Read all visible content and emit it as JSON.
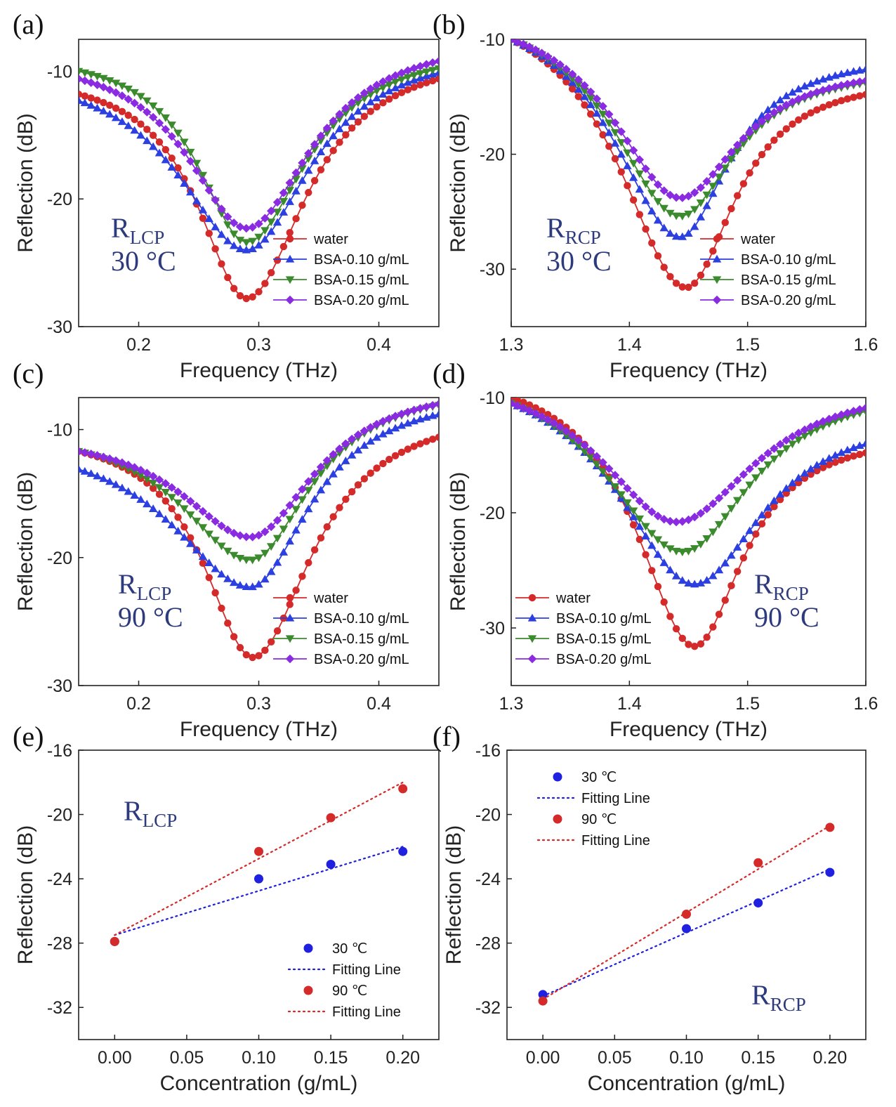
{
  "chart_data": [
    {
      "id": "a",
      "type": "line",
      "panel_label": "(a)",
      "annotation": {
        "main": "R",
        "sub": "LCP",
        "temp": "30 °C"
      },
      "legend_position": "bottom-right",
      "xlabel": "Frequency (THz)",
      "ylabel": "Reflection (dB)",
      "xlim": [
        0.15,
        0.45
      ],
      "ylim": [
        -30,
        -7.5
      ],
      "xticks": [
        0.2,
        0.3,
        0.4
      ],
      "yticks": [
        -30,
        -20,
        -10
      ],
      "xtick_labels": [
        "0.2",
        "0.3",
        "0.4"
      ],
      "ytick_labels": [
        "-30",
        "-20",
        "-10"
      ],
      "series": [
        {
          "name": "water",
          "color": "#d42a2a",
          "marker": "circle",
          "min_x": 0.29,
          "min_y": -27.8,
          "left_y": -11.8,
          "right_y": -10.6,
          "hw_left": 0.05,
          "hw_right": 0.06
        },
        {
          "name": "BSA-0.10 g/mL",
          "color": "#2c3fe0",
          "marker": "triangle-up",
          "min_x": 0.29,
          "min_y": -24.0,
          "left_y": -12.3,
          "right_y": -10.1,
          "hw_left": 0.07,
          "hw_right": 0.065
        },
        {
          "name": "BSA-0.15 g/mL",
          "color": "#3c8a2e",
          "marker": "triangle-down",
          "min_x": 0.29,
          "min_y": -23.4,
          "left_y": -10.0,
          "right_y": -9.8,
          "hw_left": 0.05,
          "hw_right": 0.06
        },
        {
          "name": "BSA-0.20 g/mL",
          "color": "#8a2be2",
          "marker": "diamond",
          "min_x": 0.29,
          "min_y": -22.3,
          "left_y": -10.6,
          "right_y": -9.2,
          "hw_left": 0.06,
          "hw_right": 0.065
        }
      ]
    },
    {
      "id": "b",
      "type": "line",
      "panel_label": "(b)",
      "annotation": {
        "main": "R",
        "sub": "RCP",
        "temp": "30 °C"
      },
      "legend_position": "bottom-right",
      "xlabel": "Frequency (THz)",
      "ylabel": "Reflection (dB)",
      "xlim": [
        1.3,
        1.6
      ],
      "ylim": [
        -35,
        -10
      ],
      "xticks": [
        1.3,
        1.4,
        1.5,
        1.6
      ],
      "yticks": [
        -30,
        -20,
        -10
      ],
      "xtick_labels": [
        "1.3",
        "1.4",
        "1.5",
        "1.6"
      ],
      "ytick_labels": [
        "-30",
        "-20",
        "-10"
      ],
      "series": [
        {
          "name": "water",
          "color": "#d42a2a",
          "marker": "circle",
          "min_x": 1.448,
          "min_y": -31.6,
          "left_y": -10.0,
          "right_y": -14.8,
          "hw_left": 0.07,
          "hw_right": 0.05
        },
        {
          "name": "BSA-0.10 g/mL",
          "color": "#2c3fe0",
          "marker": "triangle-up",
          "min_x": 1.443,
          "min_y": -27.2,
          "left_y": -10.0,
          "right_y": -12.6,
          "hw_left": 0.07,
          "hw_right": 0.05
        },
        {
          "name": "BSA-0.15 g/mL",
          "color": "#3c8a2e",
          "marker": "triangle-down",
          "min_x": 1.443,
          "min_y": -25.4,
          "left_y": -10.0,
          "right_y": -13.8,
          "hw_left": 0.07,
          "hw_right": 0.055
        },
        {
          "name": "BSA-0.20 g/mL",
          "color": "#8a2be2",
          "marker": "diamond",
          "min_x": 1.443,
          "min_y": -23.8,
          "left_y": -10.0,
          "right_y": -13.6,
          "hw_left": 0.07,
          "hw_right": 0.06
        }
      ]
    },
    {
      "id": "c",
      "type": "line",
      "panel_label": "(c)",
      "annotation": {
        "main": "R",
        "sub": "LCP",
        "temp": "90 °C"
      },
      "legend_position": "bottom-right",
      "xlabel": "Frequency (THz)",
      "ylabel": "Reflection (dB)",
      "xlim": [
        0.15,
        0.45
      ],
      "ylim": [
        -30,
        -7.5
      ],
      "xticks": [
        0.2,
        0.3,
        0.4
      ],
      "yticks": [
        -30,
        -20,
        -10
      ],
      "xtick_labels": [
        "0.2",
        "0.3",
        "0.4"
      ],
      "ytick_labels": [
        "-30",
        "-20",
        "-10"
      ],
      "series": [
        {
          "name": "water",
          "color": "#d42a2a",
          "marker": "circle",
          "min_x": 0.295,
          "min_y": -27.8,
          "left_y": -11.7,
          "right_y": -10.6,
          "hw_left": 0.05,
          "hw_right": 0.06
        },
        {
          "name": "BSA-0.10 g/mL",
          "color": "#2c3fe0",
          "marker": "triangle-up",
          "min_x": 0.293,
          "min_y": -22.3,
          "left_y": -13.1,
          "right_y": -8.8,
          "hw_left": 0.08,
          "hw_right": 0.06
        },
        {
          "name": "BSA-0.15 g/mL",
          "color": "#3c8a2e",
          "marker": "triangle-down",
          "min_x": 0.293,
          "min_y": -20.2,
          "left_y": -11.7,
          "right_y": -8.1,
          "hw_left": 0.07,
          "hw_right": 0.06
        },
        {
          "name": "BSA-0.20 g/mL",
          "color": "#8a2be2",
          "marker": "diamond",
          "min_x": 0.293,
          "min_y": -18.4,
          "left_y": -11.7,
          "right_y": -8.0,
          "hw_left": 0.07,
          "hw_right": 0.065
        }
      ]
    },
    {
      "id": "d",
      "type": "line",
      "panel_label": "(d)",
      "annotation": {
        "main": "R",
        "sub": "RCP",
        "temp": "90 °C"
      },
      "legend_position": "bottom-left",
      "xlabel": "Frequency (THz)",
      "ylabel": "Reflection (dB)",
      "xlim": [
        1.3,
        1.6
      ],
      "ylim": [
        -35,
        -10
      ],
      "xticks": [
        1.3,
        1.4,
        1.5,
        1.6
      ],
      "yticks": [
        -30,
        -20,
        -10
      ],
      "xtick_labels": [
        "1.3",
        "1.4",
        "1.5",
        "1.6"
      ],
      "ytick_labels": [
        "-30",
        "-20",
        "-10"
      ],
      "series": [
        {
          "name": "water",
          "color": "#d42a2a",
          "marker": "circle",
          "min_x": 1.455,
          "min_y": -31.6,
          "left_y": -10.0,
          "right_y": -14.8,
          "hw_left": 0.06,
          "hw_right": 0.05
        },
        {
          "name": "BSA-0.10 g/mL",
          "color": "#2c3fe0",
          "marker": "triangle-up",
          "min_x": 1.455,
          "min_y": -26.2,
          "left_y": -10.5,
          "right_y": -14.0,
          "hw_left": 0.08,
          "hw_right": 0.07
        },
        {
          "name": "BSA-0.15 g/mL",
          "color": "#3c8a2e",
          "marker": "triangle-down",
          "min_x": 1.445,
          "min_y": -23.4,
          "left_y": -10.5,
          "right_y": -11.2,
          "hw_left": 0.08,
          "hw_right": 0.07
        },
        {
          "name": "BSA-0.20 g/mL",
          "color": "#8a2be2",
          "marker": "diamond",
          "min_x": 1.44,
          "min_y": -20.8,
          "left_y": -10.5,
          "right_y": -10.9,
          "hw_left": 0.08,
          "hw_right": 0.08
        }
      ]
    },
    {
      "id": "e",
      "type": "scatter",
      "panel_label": "(e)",
      "annotation": {
        "main": "R",
        "sub": "LCP",
        "temp": ""
      },
      "legend_position": "bottom-right",
      "xlabel": "Concentration (g/mL)",
      "ylabel": "Reflection (dB)",
      "xlim": [
        -0.025,
        0.225
      ],
      "ylim": [
        -34,
        -16
      ],
      "xticks": [
        0.0,
        0.05,
        0.1,
        0.15,
        0.2
      ],
      "yticks": [
        -32,
        -28,
        -24,
        -20,
        -16
      ],
      "xtick_labels": [
        "0.00",
        "0.05",
        "0.10",
        "0.15",
        "0.20"
      ],
      "ytick_labels": [
        "-32",
        "-28",
        "-24",
        "-20",
        "-16"
      ],
      "series": [
        {
          "name": "30 ℃",
          "color": "#2020e0",
          "x": [
            0.0,
            0.1,
            0.15,
            0.2
          ],
          "y": [
            -27.9,
            -24.0,
            -23.1,
            -22.3
          ],
          "fit_name": "Fitting Line",
          "fit_x": [
            0.0,
            0.2
          ],
          "fit_y": [
            -27.5,
            -22.0
          ]
        },
        {
          "name": "90 ℃",
          "color": "#d42a2a",
          "x": [
            0.0,
            0.1,
            0.15,
            0.2
          ],
          "y": [
            -27.9,
            -22.3,
            -20.2,
            -18.4
          ],
          "fit_name": "Fitting Line",
          "fit_x": [
            0.0,
            0.2
          ],
          "fit_y": [
            -27.5,
            -18.0
          ]
        }
      ]
    },
    {
      "id": "f",
      "type": "scatter",
      "panel_label": "(f)",
      "annotation": {
        "main": "R",
        "sub": "RCP",
        "temp": ""
      },
      "legend_position": "top-left",
      "xlabel": "Concentration (g/mL)",
      "ylabel": "Reflection (dB)",
      "xlim": [
        -0.025,
        0.225
      ],
      "ylim": [
        -34,
        -16
      ],
      "xticks": [
        0.0,
        0.05,
        0.1,
        0.15,
        0.2
      ],
      "yticks": [
        -32,
        -28,
        -24,
        -20,
        -16
      ],
      "xtick_labels": [
        "0.00",
        "0.05",
        "0.10",
        "0.15",
        "0.20"
      ],
      "ytick_labels": [
        "-32",
        "-28",
        "-24",
        "-20",
        "-16"
      ],
      "series": [
        {
          "name": "30 ℃",
          "color": "#2020e0",
          "x": [
            0.0,
            0.1,
            0.15,
            0.2
          ],
          "y": [
            -31.2,
            -27.1,
            -25.5,
            -23.6
          ],
          "fit_name": "Fitting Line",
          "fit_x": [
            0.0,
            0.2
          ],
          "fit_y": [
            -31.3,
            -23.4
          ]
        },
        {
          "name": "90 ℃",
          "color": "#d42a2a",
          "x": [
            0.0,
            0.1,
            0.15,
            0.2
          ],
          "y": [
            -31.6,
            -26.2,
            -23.0,
            -20.8
          ],
          "fit_name": "Fitting Line",
          "fit_x": [
            0.0,
            0.2
          ],
          "fit_y": [
            -31.5,
            -20.7
          ]
        }
      ]
    }
  ]
}
